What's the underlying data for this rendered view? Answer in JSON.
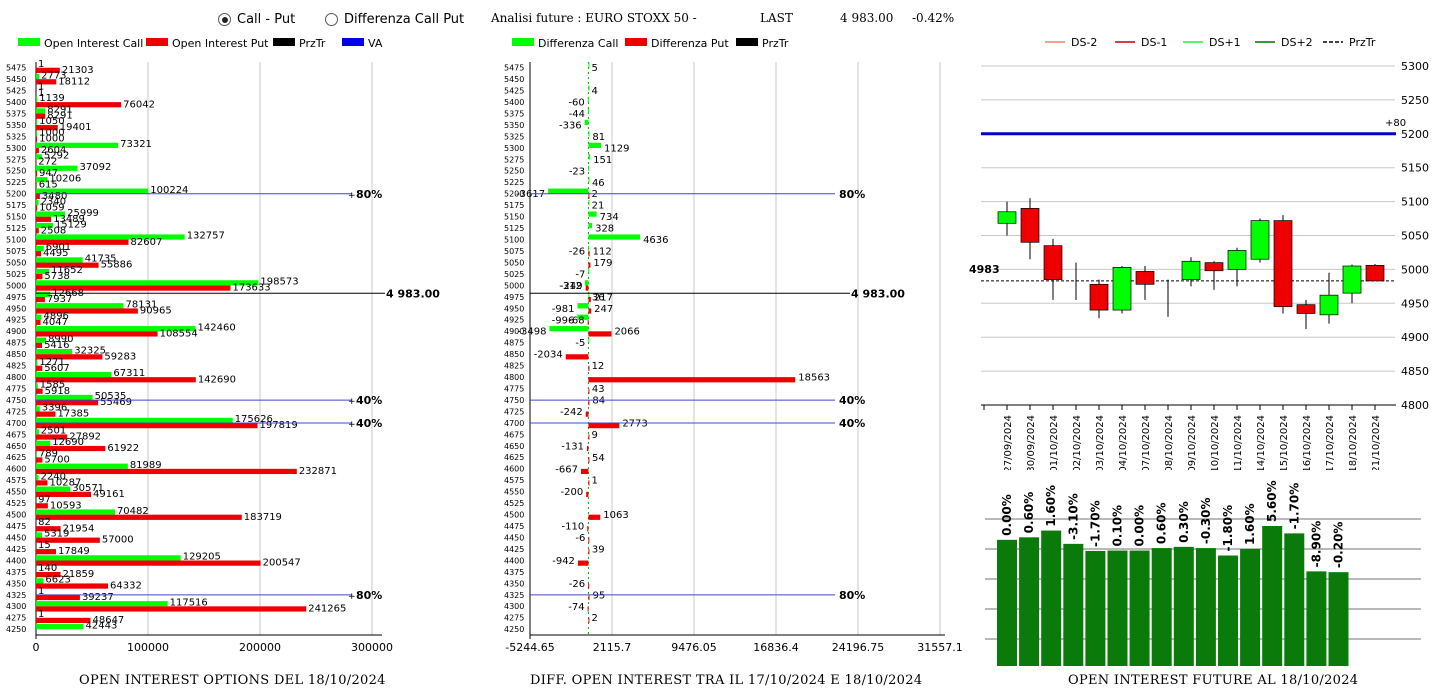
{
  "header": {
    "radio_call_put": "Call - Put",
    "radio_diff": "Differenza Call Put",
    "title": "Analisi future : EURO STOXX 50 -",
    "last_label": "LAST",
    "last_value": "4 983.00",
    "last_change": "-0.42%"
  },
  "colors": {
    "green": "#00ff00",
    "red": "#ee0000",
    "black": "#000000",
    "blue": "#0000ee",
    "darkgreen": "#0a7a0a"
  },
  "chart_data": [
    {
      "type": "bar",
      "orientation": "horizontal",
      "title": "OPEN INTEREST OPTIONS DEL 18/10/2024",
      "legend": [
        "Open Interest Call",
        "Open Interest Put",
        "PrzTr",
        "VA"
      ],
      "strikes": [
        5475,
        5450,
        5425,
        5400,
        5375,
        5350,
        5325,
        5300,
        5275,
        5250,
        5225,
        5200,
        5175,
        5150,
        5125,
        5100,
        5075,
        5050,
        5025,
        5000,
        4975,
        4950,
        4925,
        4900,
        4875,
        4850,
        4825,
        4800,
        4775,
        4750,
        4725,
        4700,
        4675,
        4650,
        4625,
        4600,
        4575,
        4550,
        4525,
        4500,
        4475,
        4450,
        4425,
        4400,
        4375,
        4350,
        4325,
        4300,
        4275,
        4250
      ],
      "series": [
        {
          "name": "Open Interest Call",
          "values": [
            1,
            2773,
            1,
            1139,
            8291,
            1050,
            1000,
            73321,
            5292,
            37092,
            10206,
            100224,
            2340,
            25999,
            15129,
            132757,
            6901,
            41735,
            11652,
            198573,
            12668,
            78131,
            4896,
            142460,
            8990,
            32325,
            1271,
            67311,
            1585,
            50535,
            3396,
            175626,
            2501,
            12690,
            789,
            81989,
            2240,
            30571,
            97,
            70482,
            82,
            5319,
            15,
            129205,
            140,
            6623,
            1,
            117516,
            1,
            42443
          ]
        },
        {
          "name": "Open Interest Put",
          "values": [
            21303,
            18112,
            1,
            76042,
            8291,
            19401,
            1000,
            2604,
            272,
            947,
            615,
            3480,
            1059,
            13489,
            2508,
            82607,
            4495,
            55886,
            5738,
            173633,
            7937,
            90965,
            4047,
            108554,
            5416,
            59283,
            5607,
            142690,
            5918,
            55469,
            17385,
            197819,
            27892,
            61922,
            5700,
            232871,
            10287,
            49161,
            10593,
            183719,
            21954,
            57000,
            17849,
            200547,
            21859,
            64332,
            39237,
            241265,
            48647,
            0
          ]
        }
      ],
      "annotations": [
        {
          "strike": 5200,
          "label": "80%"
        },
        {
          "strike": 4983,
          "label": "4 983.00"
        },
        {
          "strike": 4750,
          "label": "40%"
        },
        {
          "strike": 4700,
          "label": "40%"
        },
        {
          "strike": 4325,
          "label": "80%"
        }
      ],
      "x_ticks": [
        "0",
        "100000",
        "200000",
        "300000"
      ],
      "xlim": [
        0,
        300000
      ]
    },
    {
      "type": "bar",
      "orientation": "horizontal",
      "title": "DIFF. OPEN INTEREST TRA IL 17/10/2024 E 18/10/2024",
      "legend": [
        "Differenza Call",
        "Differenza Put",
        "PrzTr"
      ],
      "strikes": [
        5475,
        5450,
        5425,
        5400,
        5375,
        5350,
        5325,
        5300,
        5275,
        5250,
        5225,
        5200,
        5175,
        5150,
        5125,
        5100,
        5075,
        5050,
        5025,
        5000,
        4975,
        4950,
        4925,
        4900,
        4875,
        4850,
        4825,
        4800,
        4775,
        4750,
        4725,
        4700,
        4675,
        4650,
        4625,
        4600,
        4575,
        4550,
        4525,
        4500,
        4475,
        4450,
        4425,
        4400,
        4375,
        4350,
        4325,
        4300,
        4275,
        4250
      ],
      "labels": [
        {
          "strike": 5475,
          "value": "5",
          "series": "call"
        },
        {
          "strike": 5425,
          "value": "4",
          "series": "call"
        },
        {
          "strike": 5400,
          "value": "-60",
          "series": "call"
        },
        {
          "strike": 5375,
          "value": "-44",
          "series": "call"
        },
        {
          "strike": 5350,
          "value": "-336",
          "series": "call"
        },
        {
          "strike": 5325,
          "value": "81",
          "series": "call"
        },
        {
          "strike": 5300,
          "value": "1129",
          "series": "call"
        },
        {
          "strike": 5275,
          "value": "151",
          "series": "call"
        },
        {
          "strike": 5250,
          "value": "-23",
          "series": "call"
        },
        {
          "strike": 5225,
          "value": "46",
          "series": "call"
        },
        {
          "strike": 5200,
          "value": "-3617",
          "series": "call"
        },
        {
          "strike": 5200,
          "value": "2",
          "series": "put"
        },
        {
          "strike": 5175,
          "value": "21",
          "series": "call"
        },
        {
          "strike": 5150,
          "value": "734",
          "series": "call"
        },
        {
          "strike": 5125,
          "value": "328",
          "series": "call"
        },
        {
          "strike": 5100,
          "value": "4636",
          "series": "call"
        },
        {
          "strike": 5075,
          "value": "-26",
          "series": "call"
        },
        {
          "strike": 5075,
          "value": "112",
          "series": "put"
        },
        {
          "strike": 5050,
          "value": "179",
          "series": "put"
        },
        {
          "strike": 5025,
          "value": "-7",
          "series": "call"
        },
        {
          "strike": 5000,
          "value": "-312",
          "series": "call"
        },
        {
          "strike": 5000,
          "value": "-249",
          "series": "put"
        },
        {
          "strike": 4975,
          "value": "36",
          "series": "call"
        },
        {
          "strike": 4975,
          "value": "217",
          "series": "put"
        },
        {
          "strike": 4950,
          "value": "-981",
          "series": "call"
        },
        {
          "strike": 4950,
          "value": "247",
          "series": "put"
        },
        {
          "strike": 4925,
          "value": "-996",
          "series": "call"
        },
        {
          "strike": 4925,
          "value": "-68",
          "series": "put"
        },
        {
          "strike": 4900,
          "value": "-3498",
          "series": "call"
        },
        {
          "strike": 4900,
          "value": "2066",
          "series": "put"
        },
        {
          "strike": 4875,
          "value": "-5",
          "series": "call"
        },
        {
          "strike": 4850,
          "value": "-2034",
          "series": "put"
        },
        {
          "strike": 4825,
          "value": "12",
          "series": "put"
        },
        {
          "strike": 4800,
          "value": "18563",
          "series": "put"
        },
        {
          "strike": 4775,
          "value": "43",
          "series": "put"
        },
        {
          "strike": 4750,
          "value": "84",
          "series": "put"
        },
        {
          "strike": 4725,
          "value": "-242",
          "series": "put"
        },
        {
          "strike": 4700,
          "value": "2773",
          "series": "put"
        },
        {
          "strike": 4675,
          "value": "9",
          "series": "put"
        },
        {
          "strike": 4650,
          "value": "-131",
          "series": "put"
        },
        {
          "strike": 4625,
          "value": "54",
          "series": "put"
        },
        {
          "strike": 4600,
          "value": "-667",
          "series": "put"
        },
        {
          "strike": 4575,
          "value": "1",
          "series": "put"
        },
        {
          "strike": 4550,
          "value": "-200",
          "series": "put"
        },
        {
          "strike": 4500,
          "value": "1063",
          "series": "put"
        },
        {
          "strike": 4475,
          "value": "-110",
          "series": "put"
        },
        {
          "strike": 4450,
          "value": "-6",
          "series": "put"
        },
        {
          "strike": 4425,
          "value": "39",
          "series": "put"
        },
        {
          "strike": 4400,
          "value": "-942",
          "series": "put"
        },
        {
          "strike": 4350,
          "value": "-26",
          "series": "put"
        },
        {
          "strike": 4325,
          "value": "95",
          "series": "put"
        },
        {
          "strike": 4300,
          "value": "-74",
          "series": "put"
        },
        {
          "strike": 4275,
          "value": "2",
          "series": "put"
        }
      ],
      "annotations": [
        {
          "strike": 5200,
          "label": "80%"
        },
        {
          "strike": 4983,
          "label": "4 983.00"
        },
        {
          "strike": 4750,
          "label": "40%"
        },
        {
          "strike": 4700,
          "label": "40%"
        },
        {
          "strike": 4325,
          "label": "80%"
        }
      ],
      "x_ticks": [
        "-5244.65",
        "2115.7",
        "9476.05",
        "16836.4",
        "24196.75",
        "31557.1"
      ],
      "xlim": [
        -5244.65,
        31557.1
      ]
    },
    {
      "type": "candlestick",
      "legend": [
        "DS-2",
        "DS-1",
        "DS+1",
        "DS+2",
        "PrzTr"
      ],
      "dates": [
        "27/09/2024",
        "30/09/2024",
        "01/10/2024",
        "02/10/2024",
        "03/10/2024",
        "04/10/2024",
        "07/10/2024",
        "08/10/2024",
        "09/10/2024",
        "10/10/2024",
        "11/10/2024",
        "14/10/2024",
        "15/10/2024",
        "16/10/2024",
        "17/10/2024",
        "18/10/2024",
        "21/10/2024"
      ],
      "candles": [
        {
          "open": 5068,
          "close": 5085,
          "high": 5100,
          "low": 5050
        },
        {
          "open": 5090,
          "close": 5040,
          "high": 5105,
          "low": 5015
        },
        {
          "open": 5035,
          "close": 4985,
          "high": 5045,
          "low": 4955
        },
        {
          "open": null,
          "close": null,
          "high": 5010,
          "low": 4955
        },
        {
          "open": 4978,
          "close": 4940,
          "high": 4985,
          "low": 4928
        },
        {
          "open": 4940,
          "close": 5003,
          "high": 5005,
          "low": 4935
        },
        {
          "open": 4997,
          "close": 4978,
          "high": 5005,
          "low": 4955
        },
        {
          "open": null,
          "close": null,
          "high": 4985,
          "low": 4930
        },
        {
          "open": 4985,
          "close": 5012,
          "high": 5018,
          "low": 4975
        },
        {
          "open": 5010,
          "close": 4998,
          "high": 5012,
          "low": 4970
        },
        {
          "open": 5000,
          "close": 5028,
          "high": 5032,
          "low": 4975
        },
        {
          "open": 5015,
          "close": 5072,
          "high": 5075,
          "low": 5010
        },
        {
          "open": 5072,
          "close": 4945,
          "high": 5080,
          "low": 4935
        },
        {
          "open": 4948,
          "close": 4935,
          "high": 4955,
          "low": 4912
        },
        {
          "open": 4933,
          "close": 4962,
          "high": 4995,
          "low": 4920
        },
        {
          "open": 4965,
          "close": 5005,
          "high": 5007,
          "low": 4950
        },
        {
          "open": 5006,
          "close": 4983,
          "high": 5008,
          "low": 4983
        }
      ],
      "last_price": "4983",
      "va_level": 5200,
      "va_label": "+80",
      "y_ticks": [
        "5300",
        "5250",
        "5200",
        "5150",
        "5100",
        "5050",
        "5000",
        "4950",
        "4900",
        "4850",
        "4800"
      ],
      "ylim": [
        4800,
        5300
      ]
    },
    {
      "type": "bar",
      "title": "OPEN INTEREST FUTURE AL 18/10/2024",
      "values": [
        0.0,
        0.6,
        1.6,
        -3.1,
        -1.7,
        0.1,
        0.0,
        0.6,
        0.3,
        -0.3,
        -1.8,
        1.6,
        5.6,
        -1.7,
        -8.9,
        -0.2
      ],
      "labels": [
        "0.00%",
        "0.60%",
        "1.60%",
        "-3.10%",
        "-1.70%",
        "0.10%",
        "0.00%",
        "0.60%",
        "0.30%",
        "-0.30%",
        "-1.80%",
        "1.60%",
        "5.60%",
        "-1.70%",
        "-8.90%",
        "-0.20%"
      ]
    }
  ]
}
